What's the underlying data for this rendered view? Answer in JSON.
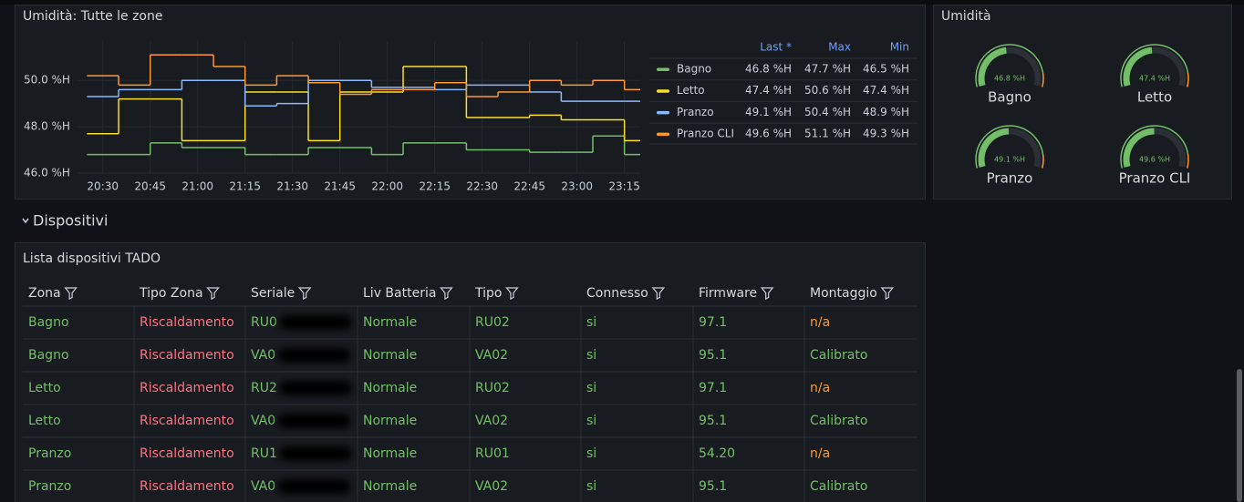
{
  "humidity_chart": {
    "type": "line",
    "title": "Umidità: Tutte le zone",
    "x": [
      "20:25",
      "20:35",
      "20:45",
      "20:55",
      "21:05",
      "21:15",
      "21:25",
      "21:35",
      "21:45",
      "21:55",
      "22:05",
      "22:15",
      "22:25",
      "22:35",
      "22:45",
      "22:55",
      "23:05",
      "23:15"
    ],
    "xlim": [
      "20:22",
      "23:20"
    ],
    "xticks": [
      "20:30",
      "20:45",
      "21:00",
      "21:15",
      "21:30",
      "21:45",
      "22:00",
      "22:15",
      "22:30",
      "22:45",
      "23:00",
      "23:15"
    ],
    "ylim": [
      46,
      51.7
    ],
    "yticks": [
      {
        "value": 46,
        "label": "46.0 %H"
      },
      {
        "value": 48,
        "label": "48.0 %H"
      },
      {
        "value": 50,
        "label": "50.0 %H"
      }
    ],
    "grid": true,
    "series": [
      {
        "name": "Bagno",
        "color": "#73bf69",
        "values": [
          46.8,
          46.8,
          47.3,
          47.1,
          47.1,
          46.8,
          46.8,
          47.1,
          47.1,
          46.8,
          47.3,
          47.3,
          47.0,
          47.0,
          46.9,
          46.9,
          47.6,
          46.8
        ]
      },
      {
        "name": "Letto",
        "color": "#fade2a",
        "values": [
          47.7,
          49.2,
          49.2,
          47.4,
          47.4,
          49.5,
          49.5,
          47.4,
          49.5,
          49.5,
          50.6,
          50.6,
          48.4,
          48.4,
          48.5,
          48.3,
          48.3,
          47.4
        ]
      },
      {
        "name": "Pranzo",
        "color": "#8ab8ff",
        "values": [
          49.3,
          49.6,
          49.6,
          50.0,
          50.0,
          48.9,
          49.0,
          50.0,
          50.0,
          49.7,
          49.7,
          49.6,
          49.8,
          49.8,
          49.5,
          49.1,
          49.1,
          49.1
        ]
      },
      {
        "name": "Pranzo CLI",
        "color": "#ff9830",
        "values": [
          50.2,
          49.8,
          51.1,
          51.1,
          50.6,
          49.8,
          50.2,
          49.9,
          49.4,
          49.6,
          49.6,
          49.9,
          49.3,
          49.5,
          50.0,
          49.8,
          50.0,
          49.6
        ]
      }
    ],
    "legend": {
      "columns": [
        "Last *",
        "Max",
        "Min"
      ],
      "rows": [
        [
          "46.8 %H",
          "47.7 %H",
          "46.5 %H"
        ],
        [
          "47.4 %H",
          "50.6 %H",
          "47.4 %H"
        ],
        [
          "49.1 %H",
          "50.4 %H",
          "48.9 %H"
        ],
        [
          "49.6 %H",
          "51.1 %H",
          "49.3 %H"
        ]
      ]
    }
  },
  "gauge_panel": {
    "title": "Umidità",
    "min": 0,
    "max": 100,
    "gauges": [
      {
        "name": "Bagno",
        "value": 46.8,
        "value_label": "46.8 %H"
      },
      {
        "name": "Letto",
        "value": 47.4,
        "value_label": "47.4 %H"
      },
      {
        "name": "Pranzo",
        "value": 49.1,
        "value_label": "49.1 %H"
      },
      {
        "name": "Pranzo CLI",
        "value": 49.6,
        "value_label": "49.6 %H"
      }
    ]
  },
  "section": {
    "title": "Dispositivi"
  },
  "device_table": {
    "title": "Lista dispositivi TADO",
    "columns": [
      "Zona",
      "Tipo Zona",
      "Seriale",
      "Liv Batteria",
      "Tipo",
      "Connesso",
      "Firmware",
      "Montaggio"
    ],
    "rows": [
      [
        "Bagno",
        "Riscaldamento",
        "RU0",
        "Normale",
        "RU02",
        "si",
        "97.1",
        "n/a"
      ],
      [
        "Bagno",
        "Riscaldamento",
        "VA0",
        "Normale",
        "VA02",
        "si",
        "95.1",
        "Calibrato"
      ],
      [
        "Letto",
        "Riscaldamento",
        "RU2",
        "Normale",
        "RU02",
        "si",
        "97.1",
        "n/a"
      ],
      [
        "Letto",
        "Riscaldamento",
        "VA0",
        "Normale",
        "VA02",
        "si",
        "95.1",
        "Calibrato"
      ],
      [
        "Pranzo",
        "Riscaldamento",
        "RU1",
        "Normale",
        "RU01",
        "si",
        "54.20",
        "n/a"
      ],
      [
        "Pranzo",
        "Riscaldamento",
        "VA0",
        "Normale",
        "VA02",
        "si",
        "95.1",
        "Calibrato"
      ]
    ]
  }
}
